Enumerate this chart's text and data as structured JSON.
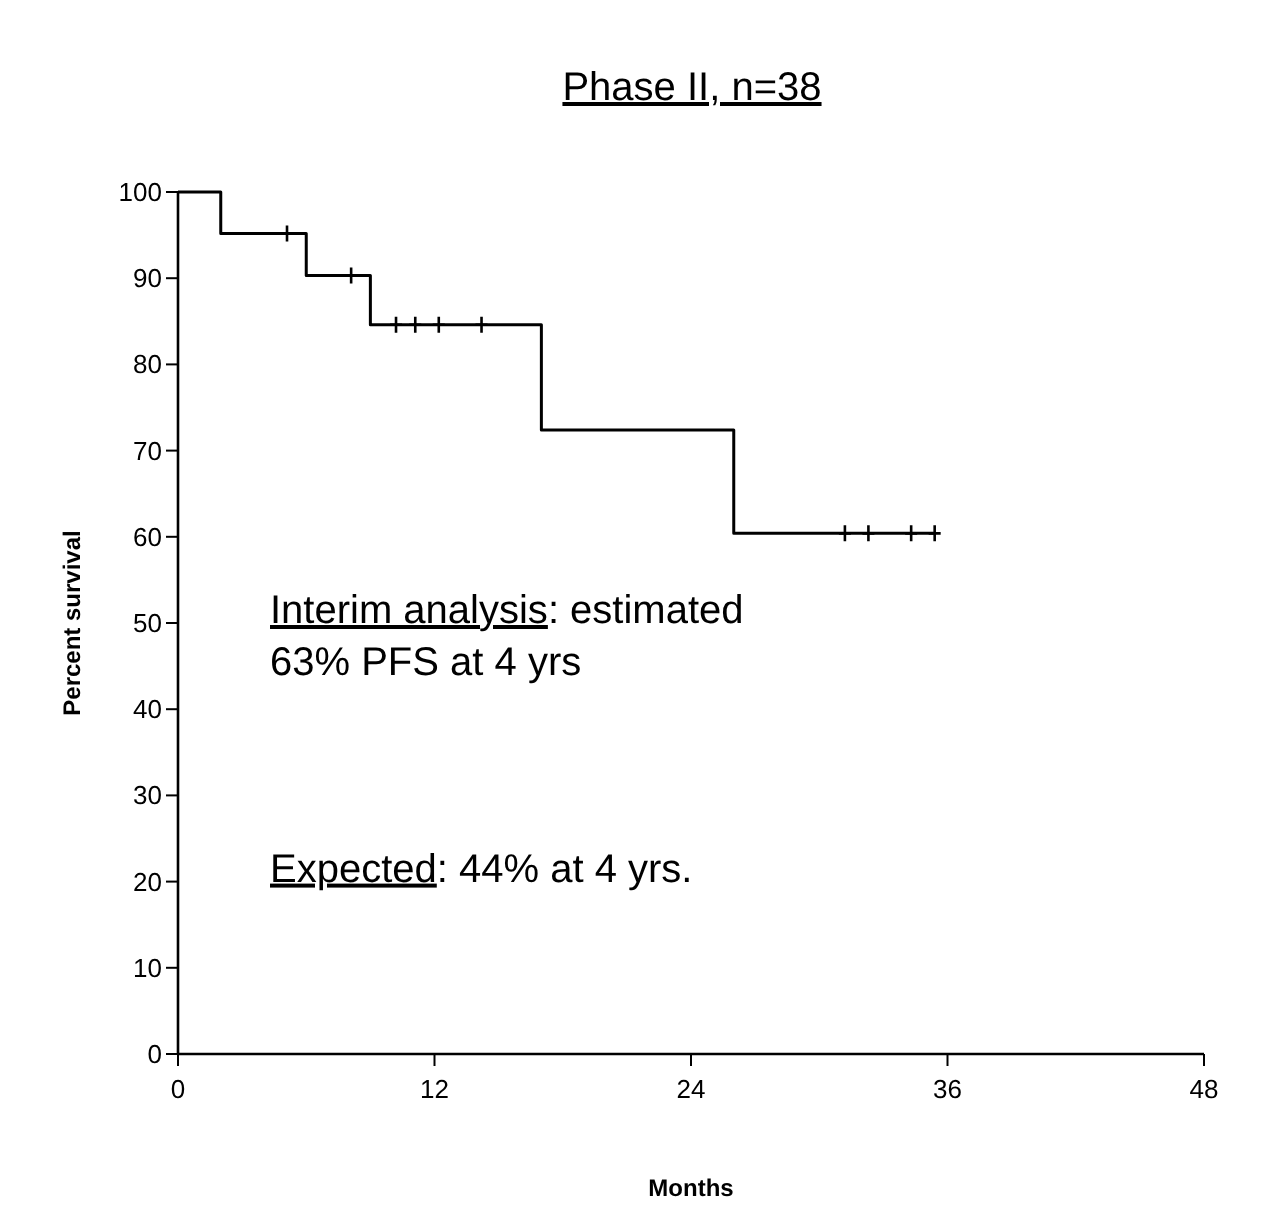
{
  "chart_data": {
    "type": "step",
    "title": "Phase II, n=38",
    "xlabel": "Months",
    "ylabel": "Percent survival",
    "series": [
      {
        "color": "#000000",
        "marker": "none",
        "x": [
          0,
          2,
          6,
          9,
          17,
          26,
          35.4
        ],
        "values": [
          100,
          95.2,
          90.3,
          84.6,
          72.4,
          60.4,
          60.4
        ]
      },
      {
        "type": "scatter",
        "color": "#000000",
        "marker": "cross",
        "x": [
          5.1,
          8.1,
          10.2,
          11.1,
          12.2,
          14.2,
          31.2,
          32.3,
          34.3,
          35.4
        ],
        "values": [
          95.2,
          90.3,
          84.6,
          84.6,
          84.6,
          84.6,
          60.4,
          60.4,
          60.4,
          60.4
        ]
      }
    ],
    "xlim": [
      0,
      48
    ],
    "xticks": [
      0,
      12,
      24,
      36,
      48
    ],
    "ylim": [
      0,
      100
    ],
    "yticks": [
      0,
      10,
      20,
      30,
      40,
      50,
      60,
      70,
      80,
      90,
      100
    ],
    "grid": false,
    "annotations": [
      "Interim analysis: estimated 63% PFS at 4 yrs",
      "Expected: 44% at 4 yrs."
    ]
  }
}
